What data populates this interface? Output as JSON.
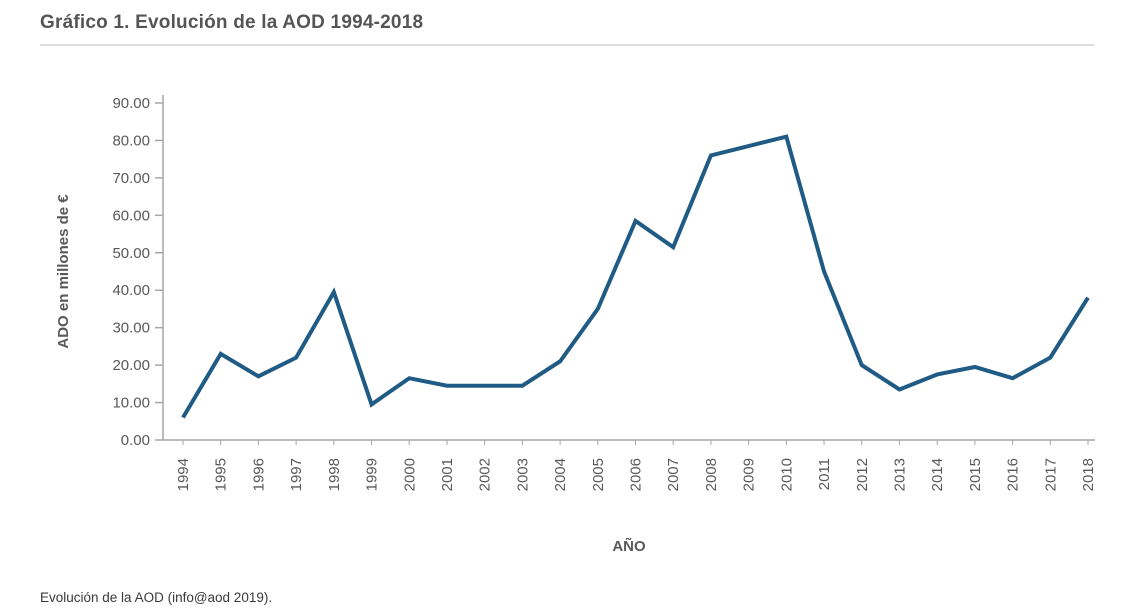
{
  "page": {
    "title": "Gráfico 1. Evolución de la AOD 1994-2018",
    "caption": "Evolución de la AOD (info@aod 2019)."
  },
  "chart_data": {
    "type": "line",
    "title": "Gráfico 1. Evolución de la AOD 1994-2018",
    "xlabel": "AÑO",
    "ylabel": "ADO en millones de €",
    "ylim": [
      0,
      90
    ],
    "ytick_step": 10,
    "ytick_format_decimals": 2,
    "grid": false,
    "legend": "none",
    "line_color": "#1f5b84",
    "axis_color": "#a6a6a6",
    "axis_text_color": "#595959",
    "categories": [
      "1994",
      "1995",
      "1996",
      "1997",
      "1998",
      "1999",
      "2000",
      "2001",
      "2002",
      "2003",
      "2004",
      "2005",
      "2006",
      "2007",
      "2008",
      "2009",
      "2010",
      "2011",
      "2012",
      "2013",
      "2014",
      "2015",
      "2016",
      "2017",
      "2018"
    ],
    "values": [
      6,
      23,
      17,
      22,
      39.5,
      9.5,
      16.5,
      14.5,
      14.5,
      14.5,
      21,
      35,
      58.5,
      51.5,
      76,
      78.5,
      81,
      45,
      20,
      13.5,
      17.5,
      19.5,
      16.5,
      22,
      38
    ]
  }
}
